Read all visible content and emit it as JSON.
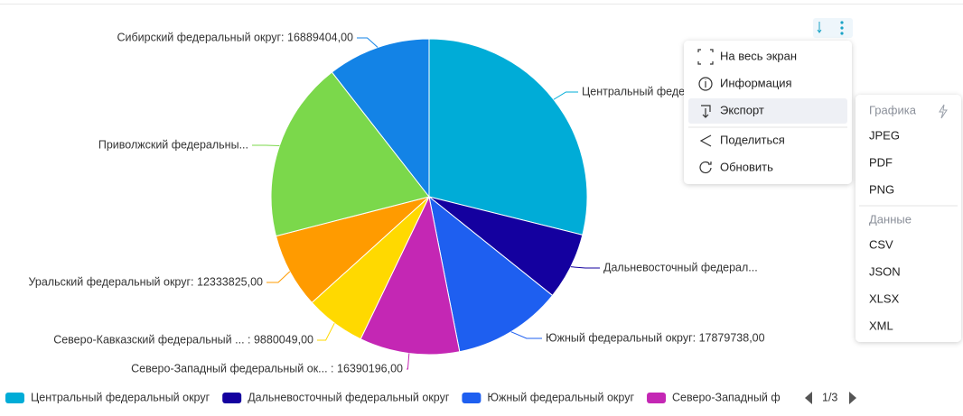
{
  "chart_data": {
    "type": "pie",
    "values": [
      46300000,
      11000000,
      17879738,
      16390196,
      9880049,
      12333825,
      29600000,
      16889404
    ],
    "colors": [
      "#00acd7",
      "#14009f",
      "#1e5ff0",
      "#c427b4",
      "#ffd900",
      "#ff9b00",
      "#7bd84b",
      "#1383e6"
    ],
    "labels": [
      "Центральный феде",
      "Дальневосточный федерал...",
      "Южный федеральный округ: 17879738,00",
      "Северо-Западный федеральный ок... : 16390196,00",
      "Северо-Кавказский федеральный ... : 9880049,00",
      "Уральский федеральный округ: 12333825,00",
      "Приволжский федеральны...",
      "Сибирский федеральный округ: 16889404,00"
    ],
    "legend": [
      "Центральный федеральный округ",
      "Дальневосточный федеральный округ",
      "Южный федеральный округ",
      "Северо-Западный ф"
    ],
    "legend_page": "1/3"
  },
  "menu": {
    "items": [
      "На весь экран",
      "Информация",
      "Экспорт",
      "Поделиться",
      "Обновить"
    ]
  },
  "submenu": {
    "graphics_title": "Графика",
    "graphics": [
      "JPEG",
      "PDF",
      "PNG"
    ],
    "data_title": "Данные",
    "data": [
      "CSV",
      "JSON",
      "XLSX",
      "XML"
    ]
  }
}
